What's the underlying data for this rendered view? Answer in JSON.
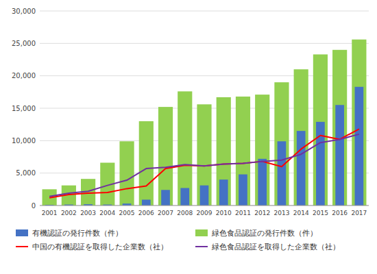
{
  "chart_data": {
    "type": "bar",
    "categories": [
      "2001",
      "2002",
      "2003",
      "2004",
      "2005",
      "2006",
      "2007",
      "2008",
      "2009",
      "2010",
      "2011",
      "2012",
      "2013",
      "2014",
      "2015",
      "2016",
      "2017"
    ],
    "series": [
      {
        "name": "有機認証の発行件数（件）",
        "type": "bar",
        "color": "#4472C4",
        "values": [
          100,
          150,
          200,
          150,
          300,
          900,
          2400,
          2700,
          3100,
          4000,
          4800,
          7200,
          9900,
          11500,
          12900,
          15500,
          18300
        ]
      },
      {
        "name": "緑色食品認証の発行件数（件）",
        "type": "bar",
        "color": "#92D050",
        "values": [
          2500,
          3100,
          4100,
          6600,
          9900,
          13000,
          15200,
          17600,
          15600,
          16700,
          16800,
          17100,
          19000,
          21000,
          23300,
          24000,
          25600
        ]
      },
      {
        "name": "中国の有機認証を取得した企業数（社）",
        "type": "line",
        "color": "#FF0000",
        "values": [
          1200,
          1700,
          1900,
          2000,
          2600,
          3000,
          5700,
          6200,
          6100,
          6400,
          6500,
          6800,
          6000,
          8700,
          10800,
          10200,
          11800
        ]
      },
      {
        "name": "緑色食品認証を取得した企業数（社）",
        "type": "line",
        "color": "#7030A0",
        "values": [
          1400,
          1900,
          2200,
          3100,
          3900,
          5700,
          5900,
          6300,
          6100,
          6400,
          6500,
          6800,
          7000,
          7900,
          9700,
          10200,
          11000
        ]
      }
    ],
    "ylim": [
      0,
      30000
    ],
    "yticks": [
      0,
      {
        "value": 5000,
        "label": "5,000"
      },
      {
        "value": 10000,
        "label": "10,000"
      },
      {
        "value": 15000,
        "label": "15,000"
      },
      {
        "value": 20000,
        "label": "20,000"
      },
      {
        "value": 25000,
        "label": "25,000"
      },
      {
        "value": 30000,
        "label": "30,000"
      }
    ],
    "grid": true,
    "legend": "bottom"
  }
}
